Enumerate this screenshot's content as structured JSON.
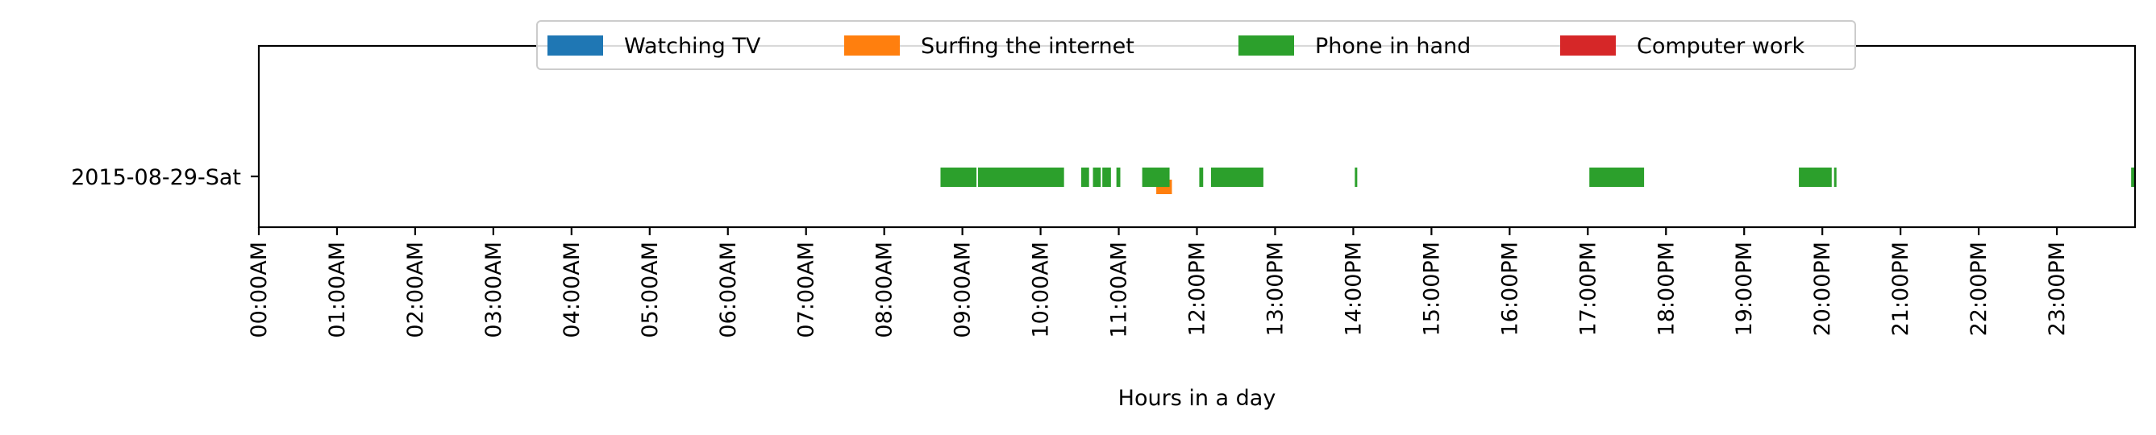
{
  "chart_data": {
    "type": "timeline",
    "xlabel": "Hours in a day",
    "xlim": [
      0,
      24
    ],
    "row_label": "2015-08-29-Sat",
    "x_ticks": [
      {
        "value": 0,
        "label": "00:00AM"
      },
      {
        "value": 1,
        "label": "01:00AM"
      },
      {
        "value": 2,
        "label": "02:00AM"
      },
      {
        "value": 3,
        "label": "03:00AM"
      },
      {
        "value": 4,
        "label": "04:00AM"
      },
      {
        "value": 5,
        "label": "05:00AM"
      },
      {
        "value": 6,
        "label": "06:00AM"
      },
      {
        "value": 7,
        "label": "07:00AM"
      },
      {
        "value": 8,
        "label": "08:00AM"
      },
      {
        "value": 9,
        "label": "09:00AM"
      },
      {
        "value": 10,
        "label": "10:00AM"
      },
      {
        "value": 11,
        "label": "11:00AM"
      },
      {
        "value": 12,
        "label": "12:00PM"
      },
      {
        "value": 13,
        "label": "13:00PM"
      },
      {
        "value": 14,
        "label": "14:00PM"
      },
      {
        "value": 15,
        "label": "15:00PM"
      },
      {
        "value": 16,
        "label": "16:00PM"
      },
      {
        "value": 17,
        "label": "17:00PM"
      },
      {
        "value": 18,
        "label": "18:00PM"
      },
      {
        "value": 19,
        "label": "19:00PM"
      },
      {
        "value": 20,
        "label": "20:00PM"
      },
      {
        "value": 21,
        "label": "21:00PM"
      },
      {
        "value": 22,
        "label": "22:00PM"
      },
      {
        "value": 23,
        "label": "23:00PM"
      }
    ],
    "legend_position": "top-center",
    "series": [
      {
        "name": "Watching TV",
        "color": "#1f77b4",
        "lane": "main",
        "intervals": []
      },
      {
        "name": "Surfing the internet",
        "color": "#ff7f0e",
        "lane": "lower",
        "intervals": [
          [
            11.48,
            11.68
          ]
        ]
      },
      {
        "name": "Phone in hand",
        "color": "#2ca02c",
        "lane": "main",
        "intervals": [
          [
            8.72,
            9.18
          ],
          [
            9.2,
            10.3
          ],
          [
            10.52,
            10.62
          ],
          [
            10.67,
            10.77
          ],
          [
            10.79,
            10.9
          ],
          [
            10.97,
            11.02
          ],
          [
            11.3,
            11.65
          ],
          [
            12.03,
            12.08
          ],
          [
            12.18,
            12.85
          ],
          [
            14.02,
            14.05
          ],
          [
            17.02,
            17.72
          ],
          [
            19.7,
            20.12
          ],
          [
            20.15,
            20.18
          ],
          [
            23.95,
            24.0
          ]
        ]
      },
      {
        "name": "Computer work",
        "color": "#d62728",
        "lane": "main",
        "intervals": []
      }
    ]
  }
}
